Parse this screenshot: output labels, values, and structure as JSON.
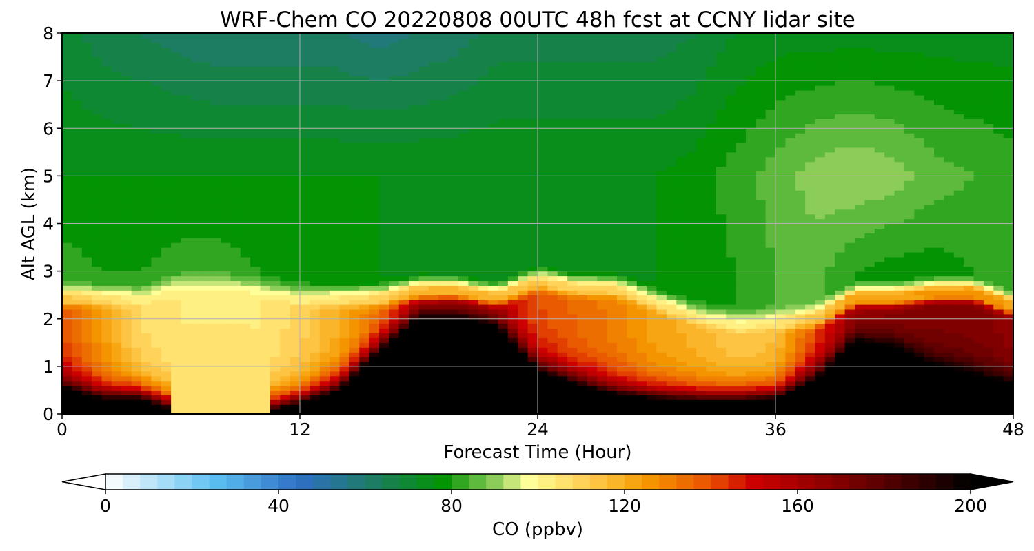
{
  "chart_data": {
    "type": "heatmap",
    "title": "WRF-Chem CO  20220808 00UTC 48h fcst at CCNY lidar site",
    "xlabel": "Forecast Time (Hour)",
    "ylabel": "Alt AGL (km)",
    "xlim": [
      0,
      48
    ],
    "ylim": [
      0,
      8
    ],
    "x_ticks": [
      0,
      12,
      24,
      36,
      48
    ],
    "y_ticks": [
      0,
      1,
      2,
      3,
      4,
      5,
      6,
      7,
      8
    ],
    "grid": true,
    "colorbar": {
      "label": "CO  (ppbv)",
      "min": 0,
      "max": 200,
      "ticks": [
        0,
        40,
        80,
        120,
        160,
        200
      ],
      "extend": "both",
      "orientation": "horizontal",
      "stops": [
        {
          "v": 0,
          "c": "#ffffff"
        },
        {
          "v": 15,
          "c": "#9fd9f6"
        },
        {
          "v": 25,
          "c": "#5cc1f2"
        },
        {
          "v": 45,
          "c": "#2f6fc4"
        },
        {
          "v": 60,
          "c": "#1f7a6e"
        },
        {
          "v": 78,
          "c": "#039303"
        },
        {
          "v": 90,
          "c": "#8ccd5a"
        },
        {
          "v": 98,
          "c": "#ffff99"
        },
        {
          "v": 110,
          "c": "#ffd35a"
        },
        {
          "v": 125,
          "c": "#f59a00"
        },
        {
          "v": 140,
          "c": "#e85000"
        },
        {
          "v": 150,
          "c": "#cc0000"
        },
        {
          "v": 175,
          "c": "#6d0000"
        },
        {
          "v": 200,
          "c": "#000000"
        }
      ]
    },
    "profile_model": {
      "description_free": true,
      "x": [
        0,
        2,
        4,
        6,
        8,
        10,
        12,
        14,
        16,
        18,
        20,
        22,
        24,
        26,
        28,
        30,
        32,
        34,
        36,
        38,
        40,
        42,
        44,
        46,
        48
      ],
      "boundary_layer_top_km": [
        2.3,
        2.3,
        2.3,
        2.55,
        2.55,
        2.45,
        2.3,
        2.3,
        2.3,
        2.45,
        2.45,
        2.3,
        2.65,
        2.5,
        2.5,
        2.2,
        1.9,
        1.75,
        1.8,
        1.85,
        2.3,
        2.3,
        2.4,
        2.4,
        2.1
      ],
      "boundary_layer_co": [
        140,
        125,
        108,
        104,
        104,
        104,
        110,
        120,
        130,
        145,
        150,
        152,
        140,
        135,
        130,
        122,
        118,
        112,
        115,
        140,
        160,
        165,
        170,
        170,
        165
      ],
      "black_core_top_km": [
        0.55,
        0.3,
        0.3,
        0.0,
        0.0,
        0.0,
        0.2,
        0.5,
        1.3,
        2.0,
        2.0,
        1.8,
        0.9,
        0.6,
        0.4,
        0.3,
        0.25,
        0.25,
        0.3,
        0.7,
        1.5,
        1.4,
        1.0,
        0.8,
        0.6
      ],
      "free_trop_co_3km": [
        82,
        80,
        80,
        82,
        82,
        80,
        78,
        76,
        76,
        75,
        74,
        74,
        74,
        74,
        74,
        76,
        78,
        80,
        84,
        86,
        80,
        78,
        78,
        80,
        82
      ],
      "free_trop_co_5km": [
        76,
        76,
        76,
        76,
        76,
        76,
        76,
        76,
        76,
        76,
        76,
        76,
        76,
        76,
        76,
        76,
        78,
        82,
        86,
        90,
        92,
        90,
        86,
        84,
        82
      ],
      "free_trop_co_8km": [
        70,
        66,
        64,
        62,
        60,
        60,
        60,
        60,
        58,
        60,
        62,
        66,
        66,
        66,
        66,
        66,
        68,
        72,
        74,
        74,
        74,
        74,
        74,
        74,
        74
      ]
    }
  }
}
